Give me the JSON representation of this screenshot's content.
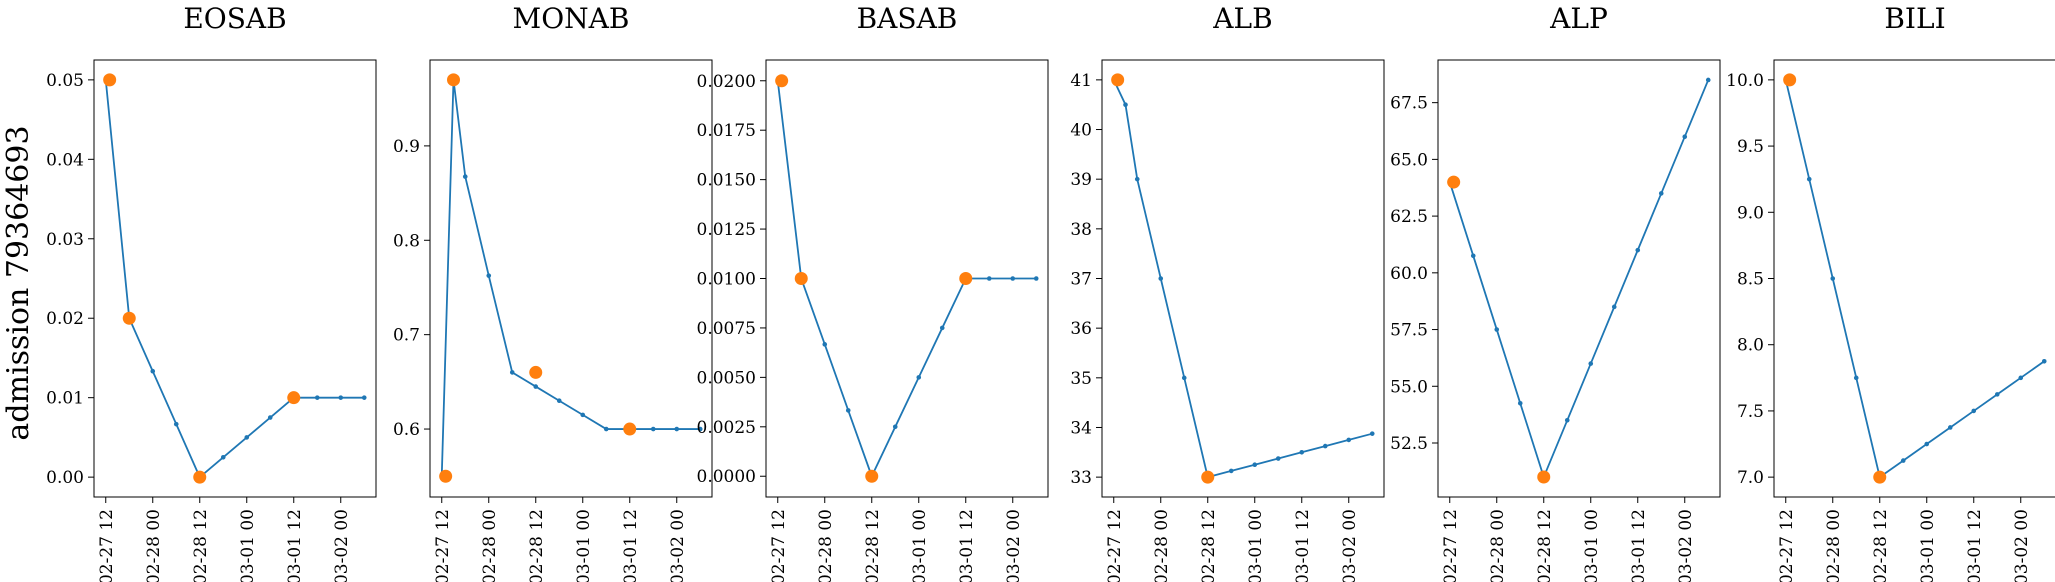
{
  "figure": {
    "row_label": "admission 79364693",
    "line_color": "#1f77b4",
    "marker_color": "#ff7f0e",
    "x_tick_labels": [
      "02-27 12",
      "02-28 00",
      "02-28 12",
      "03-01 00",
      "03-01 12",
      "03-02 00"
    ]
  },
  "chart_data": [
    {
      "type": "line",
      "title": "EOSAB",
      "xlim": [
        "02-27 09",
        "03-02 09"
      ],
      "ylim": [
        -0.0025,
        0.0525
      ],
      "yticks": [
        "0.00",
        "0.01",
        "0.02",
        "0.03",
        "0.04",
        "0.05"
      ],
      "series": [
        {
          "x": [
            "02-27 12",
            "02-27 18",
            "02-28 00",
            "02-28 06",
            "02-28 12",
            "02-28 18",
            "03-01 00",
            "03-01 06",
            "03-01 12",
            "03-01 18",
            "03-02 00",
            "03-02 06"
          ],
          "values": [
            0.05,
            0.02,
            0.01333,
            0.00667,
            0.0,
            0.0025,
            0.005,
            0.0075,
            0.01,
            0.01,
            0.01,
            0.01
          ]
        },
        {
          "x": [
            "02-27 13",
            "02-27 18",
            "02-28 12",
            "03-01 12"
          ],
          "values": [
            0.05,
            0.02,
            0.0,
            0.01
          ]
        }
      ]
    },
    {
      "type": "line",
      "title": "MONAB",
      "xlim": [
        "02-27 09",
        "03-02 09"
      ],
      "ylim": [
        0.528,
        0.991
      ],
      "yticks": [
        "0.6",
        "0.7",
        "0.8",
        "0.9"
      ],
      "series": [
        {
          "x": [
            "02-27 12",
            "02-27 15",
            "02-27 18",
            "02-28 00",
            "02-28 06",
            "02-28 12",
            "02-28 18",
            "03-01 00",
            "03-01 06",
            "03-01 12",
            "03-01 18",
            "03-02 00",
            "03-02 06"
          ],
          "values": [
            0.55,
            0.97,
            0.8675,
            0.7625,
            0.66,
            0.645,
            0.63,
            0.615,
            0.6,
            0.6,
            0.6,
            0.6,
            0.6
          ]
        },
        {
          "x": [
            "02-27 13",
            "02-27 15",
            "02-28 12",
            "03-01 12"
          ],
          "values": [
            0.55,
            0.97,
            0.66,
            0.6
          ]
        }
      ]
    },
    {
      "type": "line",
      "title": "BASAB",
      "xlim": [
        "02-27 09",
        "03-02 09"
      ],
      "ylim": [
        -0.00105,
        0.02105
      ],
      "yticks": [
        "0.0000",
        "0.0025",
        "0.0050",
        "0.0075",
        "0.0100",
        "0.0125",
        "0.0150",
        "0.0175",
        "0.0200"
      ],
      "series": [
        {
          "x": [
            "02-27 12",
            "02-27 18",
            "02-28 00",
            "02-28 06",
            "02-28 12",
            "02-28 18",
            "03-01 00",
            "03-01 06",
            "03-01 12",
            "03-01 18",
            "03-02 00",
            "03-02 06"
          ],
          "values": [
            0.02,
            0.01,
            0.00667,
            0.00333,
            0.0,
            0.0025,
            0.005,
            0.0075,
            0.01,
            0.01,
            0.01,
            0.01
          ]
        },
        {
          "x": [
            "02-27 13",
            "02-27 18",
            "02-28 12",
            "03-01 12"
          ],
          "values": [
            0.02,
            0.01,
            0.0,
            0.01
          ]
        }
      ]
    },
    {
      "type": "line",
      "title": "ALB",
      "xlim": [
        "02-27 09",
        "03-02 09"
      ],
      "ylim": [
        32.6,
        41.4
      ],
      "yticks": [
        "33",
        "34",
        "35",
        "36",
        "37",
        "38",
        "39",
        "40",
        "41"
      ],
      "series": [
        {
          "x": [
            "02-27 12",
            "02-27 15",
            "02-27 18",
            "02-28 00",
            "02-28 06",
            "02-28 12",
            "02-28 18",
            "03-01 00",
            "03-01 06",
            "03-01 12",
            "03-01 18",
            "03-02 00",
            "03-02 06"
          ],
          "values": [
            41,
            40.5,
            39,
            37,
            35,
            33,
            33.125,
            33.25,
            33.375,
            33.5,
            33.625,
            33.75,
            33.875
          ]
        },
        {
          "x": [
            "02-27 13",
            "02-28 12"
          ],
          "values": [
            41,
            33
          ]
        }
      ]
    },
    {
      "type": "line",
      "title": "ALP",
      "xlim": [
        "02-27 09",
        "03-02 09"
      ],
      "ylim": [
        50.12,
        69.38
      ],
      "yticks": [
        "52.5",
        "55.0",
        "57.5",
        "60.0",
        "62.5",
        "65.0",
        "67.5"
      ],
      "series": [
        {
          "x": [
            "02-27 12",
            "02-27 18",
            "02-28 00",
            "02-28 06",
            "02-28 12",
            "02-28 18",
            "03-01 00",
            "03-01 06",
            "03-01 12",
            "03-01 18",
            "03-02 00",
            "03-02 06"
          ],
          "values": [
            64,
            60.75,
            57.5,
            54.25,
            51,
            53.5,
            56,
            58.5,
            61,
            63.5,
            66,
            68.5
          ]
        },
        {
          "x": [
            "02-27 13",
            "02-28 12"
          ],
          "values": [
            64,
            51
          ]
        }
      ]
    },
    {
      "type": "line",
      "title": "BILI",
      "xlim": [
        "02-27 09",
        "03-02 09"
      ],
      "ylim": [
        6.85,
        10.15
      ],
      "yticks": [
        "7.0",
        "7.5",
        "8.0",
        "8.5",
        "9.0",
        "9.5",
        "10.0"
      ],
      "series": [
        {
          "x": [
            "02-27 12",
            "02-27 18",
            "02-28 00",
            "02-28 06",
            "02-28 12",
            "02-28 18",
            "03-01 00",
            "03-01 06",
            "03-01 12",
            "03-01 18",
            "03-02 00",
            "03-02 06"
          ],
          "values": [
            10,
            9.25,
            8.5,
            7.75,
            7,
            7.125,
            7.25,
            7.375,
            7.5,
            7.625,
            7.75,
            7.875
          ]
        },
        {
          "x": [
            "02-27 13",
            "02-28 12"
          ],
          "values": [
            10,
            7
          ]
        }
      ]
    }
  ]
}
